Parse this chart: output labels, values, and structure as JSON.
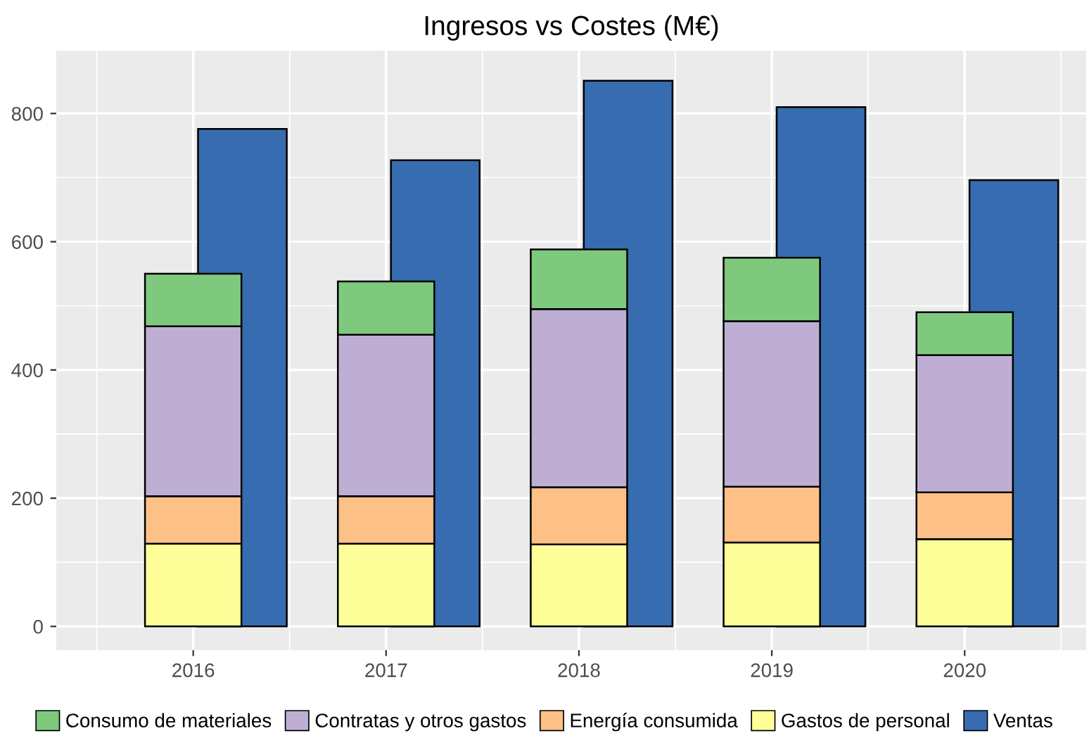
{
  "chart_data": [
    {
      "type": "bar",
      "title": "Ingresos vs Costes (M€)",
      "stacked": true,
      "categories": [
        "2016",
        "2017",
        "2018",
        "2019",
        "2020"
      ],
      "series": [
        {
          "name": "Gastos de personal",
          "color": "#ffff99",
          "values": [
            129,
            129,
            128,
            131,
            136
          ]
        },
        {
          "name": "Energía consumida",
          "color": "#fdc086",
          "values": [
            74,
            74,
            89,
            87,
            73
          ]
        },
        {
          "name": "Contratas y otros gastos",
          "color": "#beaed4",
          "values": [
            265,
            252,
            278,
            258,
            214
          ]
        },
        {
          "name": "Consumo de materiales",
          "color": "#7fc97f",
          "values": [
            82,
            83,
            93,
            99,
            67
          ]
        }
      ],
      "ylim": [
        -37,
        898
      ],
      "yticks": [
        0,
        200,
        400,
        600,
        800
      ],
      "grid": true,
      "legend": "bottom"
    },
    {
      "type": "bar",
      "categories": [
        "2016",
        "2017",
        "2018",
        "2019",
        "2020"
      ],
      "series": [
        {
          "name": "Ventas",
          "color": "#386cb0",
          "values": [
            776,
            727,
            851,
            810,
            696
          ]
        }
      ],
      "ylim": [
        -37,
        898
      ],
      "yticks": [
        0,
        200,
        400,
        600,
        800
      ],
      "grid": true,
      "legend": "bottom",
      "tick_labels": false
    }
  ]
}
